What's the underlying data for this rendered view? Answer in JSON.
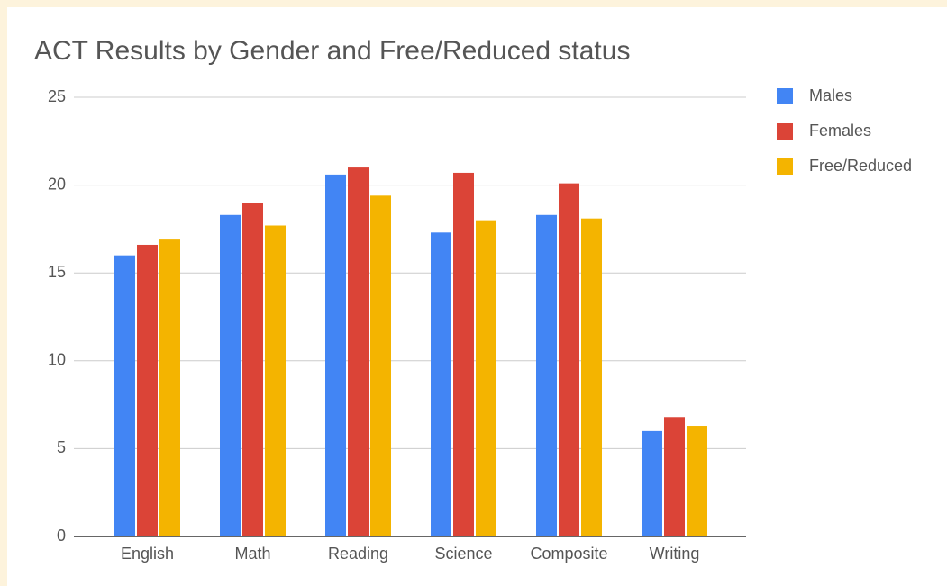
{
  "chart_data": {
    "type": "bar",
    "title": "ACT Results by Gender and Free/Reduced status",
    "categories": [
      "English",
      "Math",
      "Reading",
      "Science",
      "Composite",
      "Writing"
    ],
    "series": [
      {
        "name": "Males",
        "color": "#4285f4",
        "values": [
          16.0,
          18.3,
          20.6,
          17.3,
          18.3,
          6.0
        ]
      },
      {
        "name": "Females",
        "color": "#db4437",
        "values": [
          16.6,
          19.0,
          21.0,
          20.7,
          20.1,
          6.8
        ]
      },
      {
        "name": "Free/Reduced",
        "color": "#f4b400",
        "values": [
          16.9,
          17.7,
          19.4,
          18.0,
          18.1,
          6.3
        ]
      }
    ],
    "ylim": [
      0,
      25
    ],
    "yticks": [
      0,
      5,
      10,
      15,
      20,
      25
    ],
    "grid": true,
    "legend": "right"
  }
}
